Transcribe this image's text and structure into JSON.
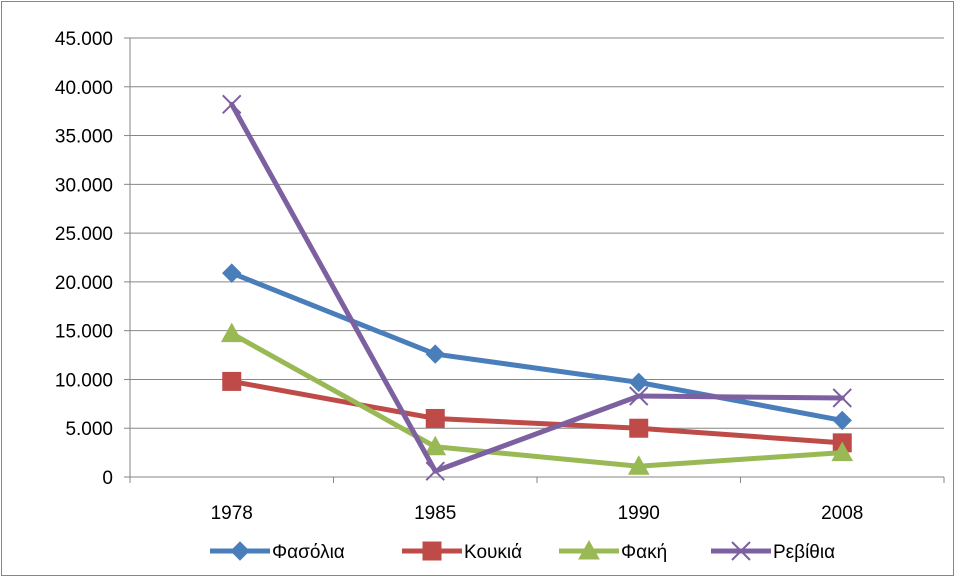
{
  "chart_data": {
    "type": "line",
    "title": "",
    "xlabel": "",
    "ylabel": "",
    "categories": [
      "1978",
      "1985",
      "1990",
      "2008"
    ],
    "ylim": [
      0,
      45000
    ],
    "yticks": [
      0,
      5000,
      10000,
      15000,
      20000,
      25000,
      30000,
      35000,
      40000,
      45000
    ],
    "ytick_labels": [
      "0",
      "5.000",
      "10.000",
      "15.000",
      "20.000",
      "25.000",
      "30.000",
      "35.000",
      "40.000",
      "45.000"
    ],
    "grid": true,
    "legend_position": "bottom",
    "series": [
      {
        "name": "Φασόλια",
        "values": [
          20900,
          12600,
          9700,
          5800
        ],
        "color": "#4a7ebb",
        "marker": "diamond"
      },
      {
        "name": "Κουκιά",
        "values": [
          9800,
          6000,
          5000,
          3500
        ],
        "color": "#be4b48",
        "marker": "square"
      },
      {
        "name": "Φακή",
        "values": [
          14700,
          3100,
          1100,
          2500
        ],
        "color": "#98b954",
        "marker": "triangle"
      },
      {
        "name": "Ρεβίθια",
        "values": [
          38200,
          600,
          8300,
          8100
        ],
        "color": "#7d60a0",
        "marker": "x"
      }
    ]
  }
}
